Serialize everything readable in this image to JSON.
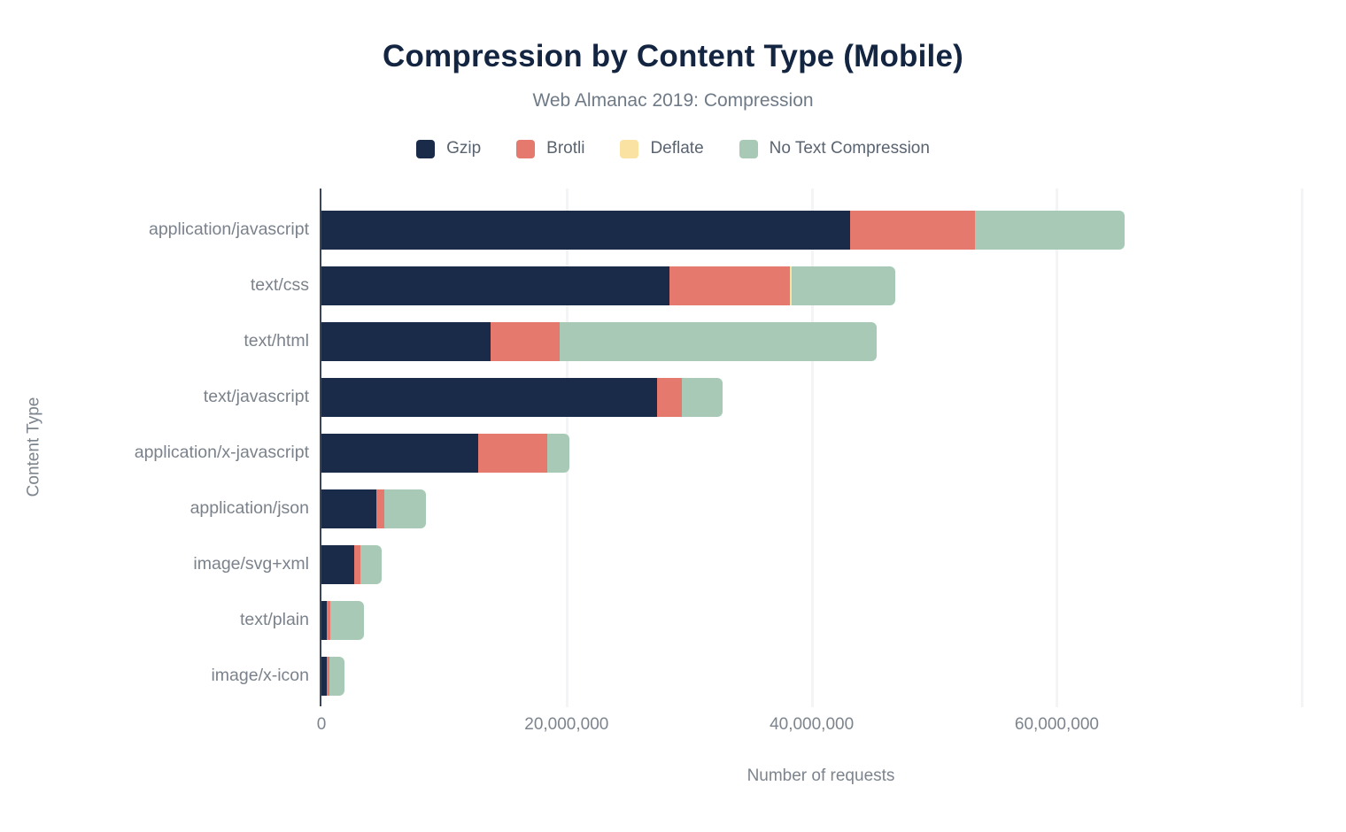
{
  "chart_data": {
    "type": "bar",
    "orientation": "horizontal",
    "stacked": true,
    "title": "Compression by Content Type (Mobile)",
    "subtitle": "Web Almanac 2019: Compression",
    "xlabel": "Number of requests",
    "ylabel": "Content Type",
    "xlim": [
      0,
      81500000
    ],
    "xticks": [
      0,
      20000000,
      40000000,
      60000000
    ],
    "xtick_labels": [
      "0",
      "20,000,000",
      "40,000,000",
      "60,000,000"
    ],
    "gridlines": [
      20000000,
      40000000,
      60000000,
      80000000
    ],
    "grid": true,
    "legend_position": "top",
    "categories": [
      "application/javascript",
      "text/css",
      "text/html",
      "text/javascript",
      "application/x-javascript",
      "application/json",
      "image/svg+xml",
      "text/plain",
      "image/x-icon"
    ],
    "series": [
      {
        "name": "Gzip",
        "color": "#1a2b49",
        "values": [
          43100000,
          28400000,
          13800000,
          27400000,
          12800000,
          4500000,
          2700000,
          450000,
          450000
        ]
      },
      {
        "name": "Brotli",
        "color": "#e5796d",
        "values": [
          10200000,
          9800000,
          5600000,
          2000000,
          5600000,
          600000,
          500000,
          300000,
          200000
        ]
      },
      {
        "name": "Deflate",
        "color": "#fae3a2",
        "values": [
          0,
          150000,
          0,
          0,
          0,
          0,
          0,
          0,
          0
        ]
      },
      {
        "name": "No Text Compression",
        "color": "#a9c9b7",
        "values": [
          12200000,
          8500000,
          25900000,
          3300000,
          1800000,
          3400000,
          1700000,
          2700000,
          1200000
        ]
      }
    ]
  }
}
